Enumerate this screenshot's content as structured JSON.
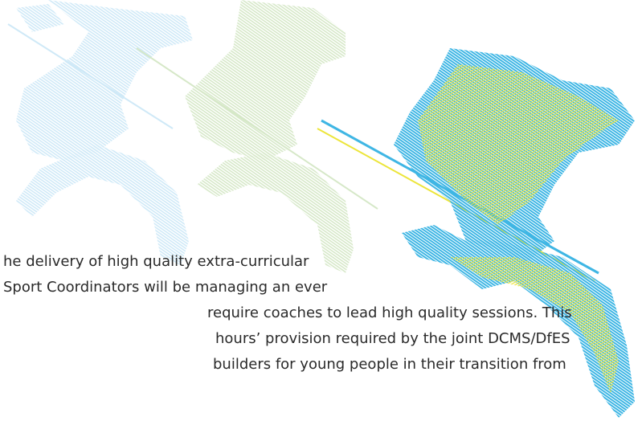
{
  "paragraph": {
    "lines": [
      "he delivery of high quality extra-curricular",
      "Sport Coordinators will be managing an ever",
      "require coaches to lead high quality sessions. This",
      "hours’ provision required by the joint DCMS/DfES",
      "builders for young people in their transition from"
    ]
  }
}
